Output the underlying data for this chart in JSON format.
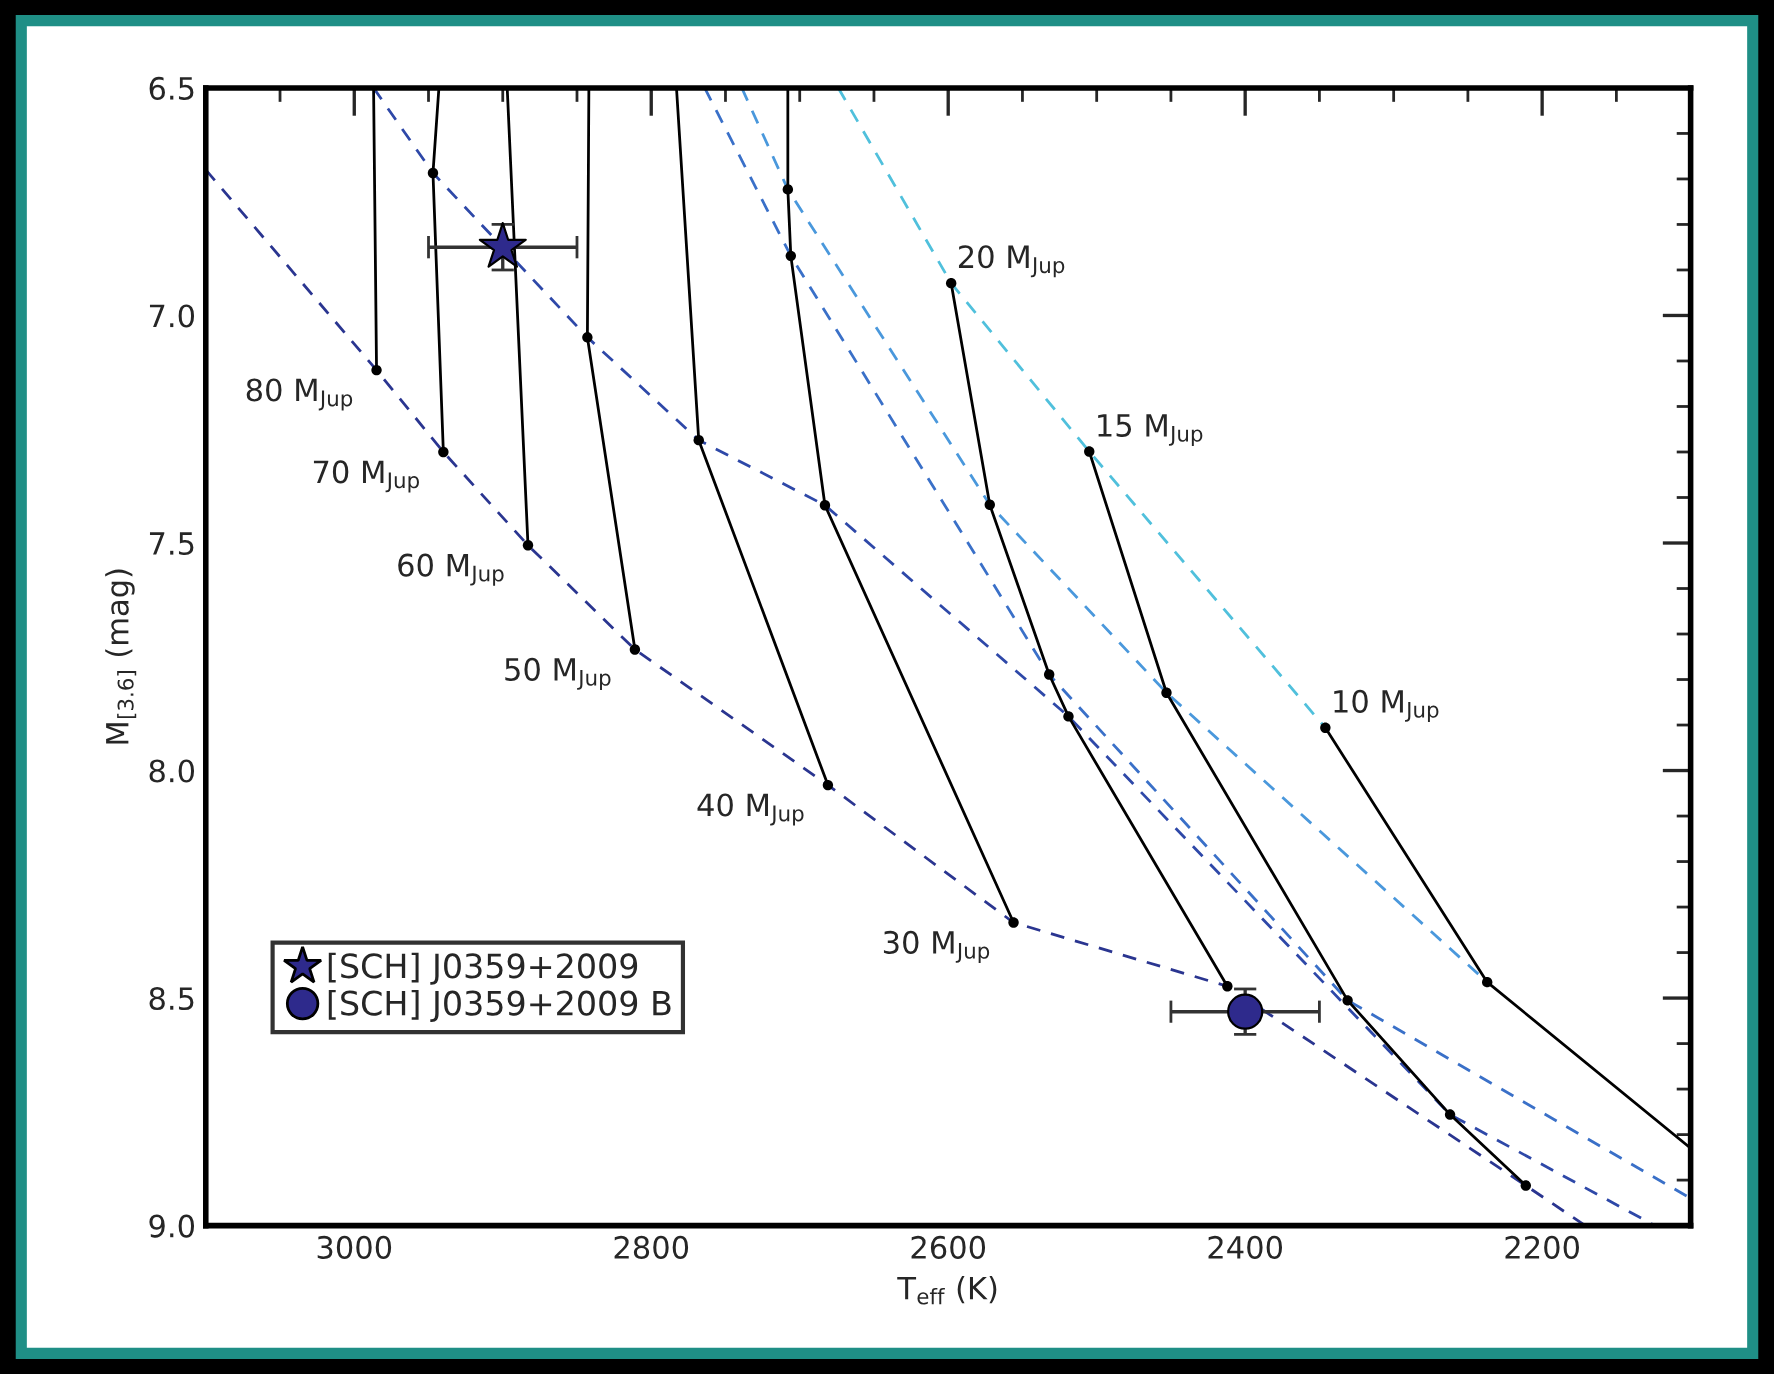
{
  "chart_data": {
    "type": "line",
    "xlabel": "T$_{eff}$ (K)",
    "ylabel": "M$_{[3.6]}$ (mag)",
    "xlim": [
      3100,
      2100
    ],
    "ylim": [
      9.0,
      6.5
    ],
    "xticks": [
      {
        "value": 3050,
        "label": null
      },
      3000,
      {
        "value": 2950,
        "label": null
      },
      {
        "value": 2900,
        "label": null
      },
      {
        "value": 2850,
        "label": null
      },
      2800,
      {
        "value": 2750,
        "label": null
      },
      {
        "value": 2700,
        "label": null
      },
      {
        "value": 2650,
        "label": null
      },
      2600,
      {
        "value": 2550,
        "label": null
      },
      {
        "value": 2500,
        "label": null
      },
      {
        "value": 2450,
        "label": null
      },
      2400,
      {
        "value": 2350,
        "label": null
      },
      {
        "value": 2300,
        "label": null
      },
      {
        "value": 2250,
        "label": null
      },
      2200,
      {
        "value": 2150,
        "label": null
      }
    ],
    "yticks": [
      {
        "value": 6.5,
        "label": "6.5"
      },
      {
        "value": 6.6,
        "label": null
      },
      {
        "value": 6.7,
        "label": null
      },
      {
        "value": 6.8,
        "label": null
      },
      {
        "value": 6.9,
        "label": null
      },
      {
        "value": 7.0,
        "label": "7.0"
      },
      {
        "value": 7.1,
        "label": null
      },
      {
        "value": 7.2,
        "label": null
      },
      {
        "value": 7.3,
        "label": null
      },
      {
        "value": 7.4,
        "label": null
      },
      7.5,
      {
        "value": 7.6,
        "label": null
      },
      {
        "value": 7.7,
        "label": null
      },
      {
        "value": 7.8,
        "label": null
      },
      {
        "value": 7.9,
        "label": null
      },
      {
        "value": 8.0,
        "label": "8.0"
      },
      {
        "value": 8.1,
        "label": null
      },
      {
        "value": 8.2,
        "label": null
      },
      {
        "value": 8.3,
        "label": null
      },
      {
        "value": 8.4,
        "label": null
      },
      8.5,
      {
        "value": 8.6,
        "label": null
      },
      {
        "value": 8.7,
        "label": null
      },
      {
        "value": 8.8,
        "label": null
      },
      {
        "value": 8.9,
        "label": null
      },
      {
        "value": 9.0,
        "label": "9.0"
      }
    ],
    "grid": false,
    "legend": "bottom left",
    "series": [
      {
        "line_style": "dashed",
        "color": "#2a3590",
        "x": [
          3100,
          2985,
          2940,
          2883,
          2811,
          2681,
          2556,
          2412,
          2211,
          2171
        ],
        "values": [
          6.68,
          7.12,
          7.3,
          7.505,
          7.734,
          8.032,
          8.334,
          8.474,
          8.912,
          9.0
        ]
      },
      {
        "line_style": "dashed",
        "color": "#2e48a8",
        "x": [
          2987,
          2947,
          2843,
          2768,
          2683,
          2519,
          2262,
          2124
        ],
        "values": [
          6.5,
          6.687,
          7.048,
          7.274,
          7.417,
          7.881,
          8.756,
          9.0
        ]
      },
      {
        "line_style": "dashed",
        "color": "#3a70c8",
        "x": [
          2764,
          2706,
          2532,
          2331,
          2100
        ],
        "values": [
          6.5,
          6.869,
          7.789,
          8.505,
          8.94
        ]
      },
      {
        "line_style": "dashed",
        "color": "#4a98dc",
        "x": [
          2739,
          2708,
          2572,
          2453,
          2237
        ],
        "values": [
          6.5,
          6.723,
          7.416,
          7.829,
          8.465
        ]
      },
      {
        "line_style": "dashed",
        "color": "#50c0dc",
        "x": [
          2674,
          2598,
          2505,
          2346
        ],
        "values": [
          6.5,
          6.929,
          7.299,
          7.906
        ]
      },
      {
        "line_style": "solid",
        "name": "80 M$_{Jup}$",
        "color": "#000000",
        "x": [
          2987,
          2985
        ],
        "values": [
          6.5,
          7.12
        ]
      },
      {
        "line_style": "solid",
        "name": "70 M$_{Jup}$",
        "color": "#000000",
        "x": [
          2943,
          2947,
          2940
        ],
        "values": [
          6.5,
          6.687,
          7.3
        ]
      },
      {
        "line_style": "solid",
        "name": "60 M$_{Jup}$",
        "color": "#000000",
        "x": [
          2897,
          2883
        ],
        "values": [
          6.5,
          7.505
        ]
      },
      {
        "line_style": "solid",
        "name": "50 M$_{Jup}$",
        "color": "#000000",
        "x": [
          2842,
          2843,
          2811
        ],
        "values": [
          6.5,
          7.048,
          7.734
        ]
      },
      {
        "line_style": "solid",
        "name": "40 M$_{Jup}$",
        "color": "#000000",
        "x": [
          2783,
          2768,
          2681
        ],
        "values": [
          6.5,
          7.274,
          8.032
        ]
      },
      {
        "line_style": "solid",
        "name": "30 M$_{Jup}$",
        "color": "#000000",
        "x": [
          2708,
          2708,
          2706,
          2683,
          2556
        ],
        "values": [
          6.5,
          6.723,
          6.869,
          7.417,
          8.334
        ]
      },
      {
        "line_style": "solid",
        "name": "20 M$_{Jup}$",
        "color": "#000000",
        "x": [
          2598,
          2572,
          2532,
          2519,
          2412
        ],
        "values": [
          6.929,
          7.416,
          7.789,
          7.881,
          8.474
        ]
      },
      {
        "line_style": "solid",
        "name": "15 M$_{Jup}$",
        "color": "#000000",
        "x": [
          2505,
          2453,
          2331,
          2262,
          2211
        ],
        "values": [
          7.299,
          7.829,
          8.505,
          8.756,
          8.912
        ]
      },
      {
        "line_style": "solid",
        "name": "10 M$_{Jup}$",
        "color": "#000000",
        "x": [
          2346,
          2237,
          2100
        ],
        "values": [
          7.906,
          8.465,
          8.83
        ]
      },
      {
        "type": "scatter",
        "marker": "circle",
        "color": "#000000",
        "x": [
          2985,
          2947,
          2940,
          2883,
          2843,
          2811,
          2768,
          2681,
          2708,
          2706,
          2683,
          2556,
          2598,
          2572,
          2532,
          2519,
          2412,
          2505,
          2453,
          2331,
          2262,
          2211,
          2346,
          2237
        ],
        "values": [
          7.12,
          6.687,
          7.3,
          7.505,
          7.048,
          7.734,
          7.274,
          8.032,
          6.723,
          6.869,
          7.417,
          8.334,
          6.929,
          7.416,
          7.789,
          7.881,
          8.474,
          7.299,
          7.829,
          8.505,
          8.756,
          8.912,
          7.906,
          8.465
        ]
      },
      {
        "type": "scatter",
        "marker": "star",
        "name": "[SCH] J0359+2009",
        "color": "#2e2a8c",
        "x": [
          2900
        ],
        "values": [
          6.85
        ],
        "errors": [
          0.05
        ],
        "xerrors": [
          50
        ]
      },
      {
        "type": "scatter",
        "marker": "circle",
        "name": "[SCH] J0359+2009 B",
        "color": "#2e2a8c",
        "x": [
          2400
        ],
        "values": [
          8.53
        ],
        "errors": [
          0.05
        ],
        "xerrors": [
          50
        ]
      }
    ]
  }
}
